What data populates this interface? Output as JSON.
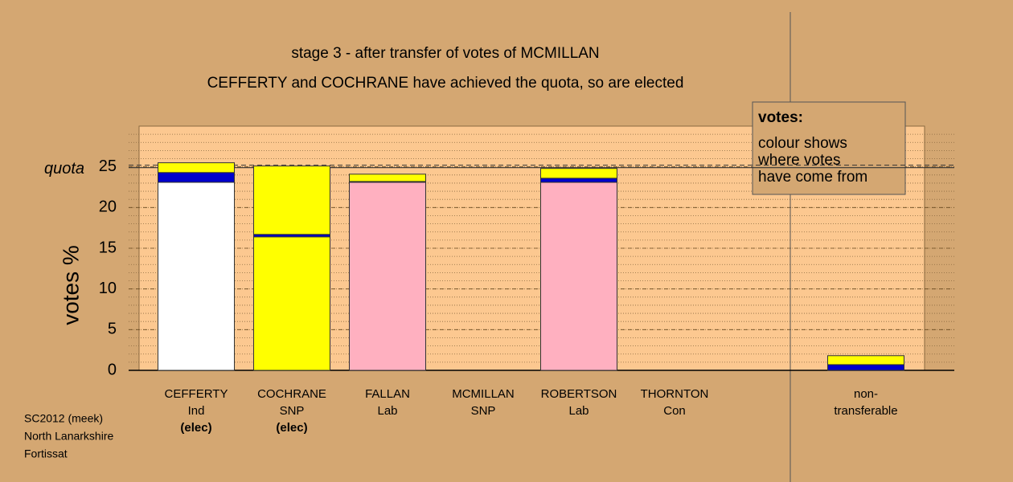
{
  "chart_data": {
    "type": "stacked_bar",
    "title": "stage 3 - after transfer of votes of MCMILLAN",
    "subtitle": "CEFFERTY and COCHRANE have achieved the quota, so are elected",
    "y_label": "votes %",
    "categories": [
      [
        "CEFFERTY",
        "Ind",
        "(elec)"
      ],
      [
        "COCHRANE",
        "SNP",
        "(elec)"
      ],
      [
        "FALLAN",
        "Lab"
      ],
      [
        "MCMILLAN",
        "SNP"
      ],
      [
        "ROBERTSON",
        "Lab"
      ],
      [
        "THORNTON",
        "Con"
      ],
      [
        "non-",
        "transferable"
      ]
    ],
    "series": [
      {
        "color": "#ffffff",
        "values": [
          23.1,
          0,
          0,
          0,
          0,
          0,
          0
        ]
      },
      {
        "color": "#ffff00",
        "values": [
          0,
          16.4,
          0,
          0,
          0,
          0,
          0
        ]
      },
      {
        "color": "#ffb0c0",
        "values": [
          0,
          0,
          23.1,
          0,
          23.1,
          0,
          0
        ]
      },
      {
        "color": "#0000cc",
        "values": [
          1.2,
          0.3,
          0.1,
          0,
          0.5,
          0,
          0.7
        ]
      },
      {
        "color": "#ffff00",
        "values": [
          1.2,
          8.4,
          0.9,
          0,
          1.2,
          0,
          1.1
        ]
      }
    ],
    "ylim": [
      0,
      30
    ],
    "yticks": [
      0,
      5,
      10,
      15,
      20,
      25
    ],
    "minor_tick_step": 1,
    "quota": {
      "label": "quota",
      "value": 24.9
    },
    "reference_line": 25.2,
    "legend": {
      "title": "votes:",
      "lines": [
        "colour shows",
        "where votes",
        "have come from"
      ]
    },
    "footer": [
      "SC2012 (meek)",
      "North Lanarkshire",
      "Fortissat"
    ]
  }
}
